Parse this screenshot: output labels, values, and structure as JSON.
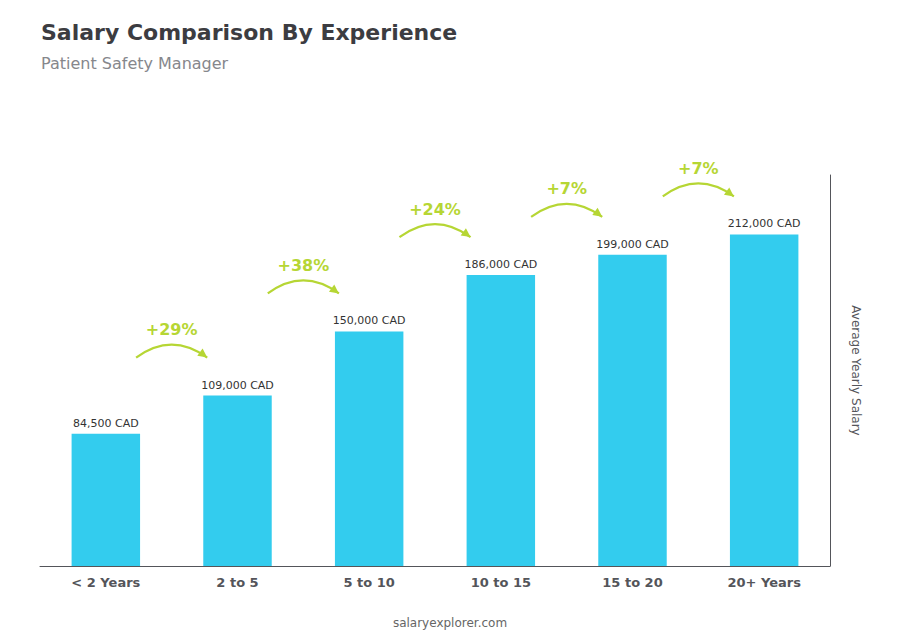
{
  "chart_data": {
    "type": "bar",
    "title": "Salary Comparison By Experience",
    "subtitle": "Patient Safety Manager",
    "categories": [
      "< 2 Years",
      "2 to 5",
      "5 to 10",
      "10 to 15",
      "15 to 20",
      "20+ Years"
    ],
    "values": [
      84500,
      109000,
      150000,
      186000,
      199000,
      212000
    ],
    "value_labels": [
      "84,500 CAD",
      "109,000 CAD",
      "150,000 CAD",
      "186,000 CAD",
      "199,000 CAD",
      "212,000 CAD"
    ],
    "data_labels": true,
    "color": "#33ccee",
    "ylabel": "Average Yearly Salary",
    "ylim": [
      0,
      250000
    ],
    "grid": false,
    "tick_labels": "x",
    "annotations": [
      {
        "text": "+29%",
        "from": "< 2 Years",
        "to": "2 to 5"
      },
      {
        "text": "+38%",
        "from": "2 to 5",
        "to": "5 to 10"
      },
      {
        "text": "+24%",
        "from": "5 to 10",
        "to": "10 to 15"
      },
      {
        "text": "+7%",
        "from": "10 to 15",
        "to": "15 to 20"
      },
      {
        "text": "+7%",
        "from": "15 to 20",
        "to": "20+ Years"
      }
    ],
    "footer": "salaryexplorer.com"
  }
}
